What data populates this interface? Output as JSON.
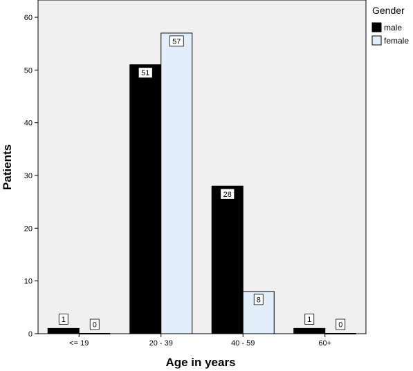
{
  "chart_data": {
    "type": "bar",
    "categories": [
      "<= 19",
      "20 - 39",
      "40 - 59",
      "60+"
    ],
    "series": [
      {
        "name": "male",
        "values": [
          1,
          51,
          28,
          1
        ],
        "color": "#000000"
      },
      {
        "name": "female",
        "values": [
          0,
          57,
          8,
          0
        ],
        "color": "#E2EEFA"
      }
    ],
    "xlabel": "Age in years",
    "ylabel": "Patients",
    "ylim": [
      0,
      60
    ],
    "yticks": [
      0,
      10,
      20,
      30,
      40,
      50,
      60
    ],
    "legend": {
      "title": "Gender",
      "placement": "top-right"
    },
    "grid": false,
    "plot_background": "#F0F0F0"
  }
}
